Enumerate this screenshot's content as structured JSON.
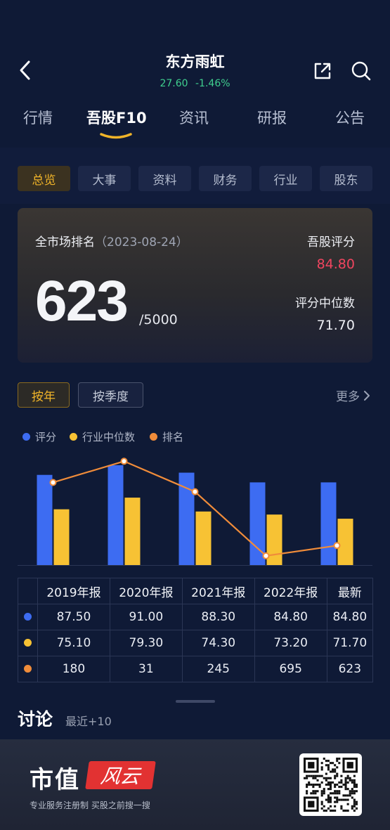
{
  "header": {
    "title": "东方雨虹",
    "price": "27.60",
    "change": "-1.46%"
  },
  "main_tabs": [
    {
      "label": "行情"
    },
    {
      "label": "吾股F10"
    },
    {
      "label": "资讯"
    },
    {
      "label": "研报"
    },
    {
      "label": "公告"
    }
  ],
  "sub_tabs": [
    {
      "label": "总览"
    },
    {
      "label": "大事"
    },
    {
      "label": "资料"
    },
    {
      "label": "财务"
    },
    {
      "label": "行业"
    },
    {
      "label": "股东"
    }
  ],
  "rank_card": {
    "label": "全市场排名",
    "date": "（2023-08-24）",
    "rank": "623",
    "total": "/5000",
    "score_label": "吾股评分",
    "score_value": "84.80",
    "median_label": "评分中位数",
    "median_value": "71.70"
  },
  "period": {
    "year": "按年",
    "quarter": "按季度",
    "more": "更多"
  },
  "legend": [
    {
      "label": "评分",
      "color": "#3d6cf2"
    },
    {
      "label": "行业中位数",
      "color": "#f7c234"
    },
    {
      "label": "排名",
      "color": "#f08c3a"
    }
  ],
  "chart_data": {
    "type": "bar",
    "categories": [
      "2019年报",
      "2020年报",
      "2021年报",
      "2022年报",
      "最新"
    ],
    "series": [
      {
        "name": "评分",
        "type": "bar",
        "values": [
          87.5,
          91.0,
          88.3,
          84.8,
          84.8
        ],
        "color": "#3d6cf2"
      },
      {
        "name": "行业中位数",
        "type": "bar",
        "values": [
          75.1,
          79.3,
          74.3,
          73.2,
          71.7
        ],
        "color": "#f7c234"
      },
      {
        "name": "排名",
        "type": "line",
        "values": [
          180,
          31,
          245,
          695,
          623
        ],
        "color": "#f08c3a"
      }
    ]
  },
  "table": {
    "headers": [
      "2019年报",
      "2020年报",
      "2021年报",
      "2022年报",
      "最新"
    ],
    "rows": [
      {
        "color": "#3d6cf2",
        "values": [
          "87.50",
          "91.00",
          "88.30",
          "84.80",
          "84.80"
        ]
      },
      {
        "color": "#f7c234",
        "values": [
          "75.10",
          "79.30",
          "74.30",
          "73.20",
          "71.70"
        ]
      },
      {
        "color": "#f08c3a",
        "values": [
          "180",
          "31",
          "245",
          "695",
          "623"
        ]
      }
    ]
  },
  "discussion": {
    "title": "讨论",
    "subtitle": "最近+10"
  },
  "footer": {
    "brand": "市值",
    "logo_text": "风云",
    "slogan": "专业服务注册制 买股之前搜一搜"
  }
}
